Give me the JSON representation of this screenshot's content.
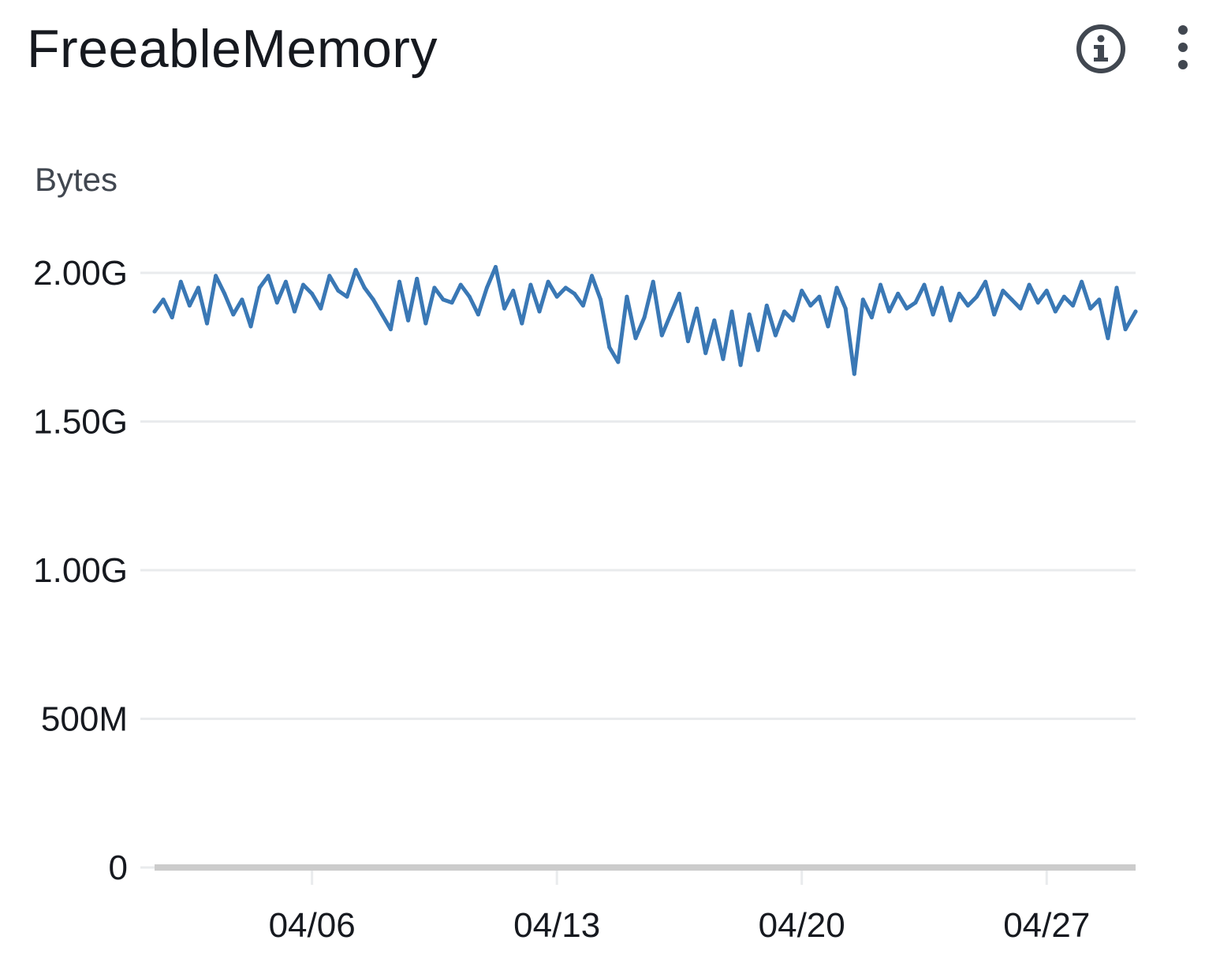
{
  "widget": {
    "title": "FreeableMemory",
    "info_icon": "info-icon",
    "more_icon": "vertical-ellipsis-icon"
  },
  "colors": {
    "series": "#3a78b5",
    "grid": "#e9ebed",
    "axis": "#cccccc",
    "text": "#16191f",
    "icon": "#414750"
  },
  "chart_data": {
    "type": "line",
    "title": "FreeableMemory",
    "ylabel": "Bytes",
    "xlabel": "",
    "ylim": [
      0,
      2000000000
    ],
    "yticks": [
      {
        "value": 0,
        "label": "0"
      },
      {
        "value": 500000000,
        "label": "500M"
      },
      {
        "value": 1000000000,
        "label": "1.00G"
      },
      {
        "value": 1500000000,
        "label": "1.50G"
      },
      {
        "value": 2000000000,
        "label": "2.00G"
      }
    ],
    "xlim": [
      "04/01 12:00",
      "04/29 13:00"
    ],
    "xticks": [
      {
        "value": "04/06",
        "label": "04/06"
      },
      {
        "value": "04/13",
        "label": "04/13"
      },
      {
        "value": "04/20",
        "label": "04/20"
      },
      {
        "value": "04/27",
        "label": "04/27"
      }
    ],
    "grid": true,
    "legend": "none",
    "series": [
      {
        "points": [
          [
            "04/01 12:00",
            1.87
          ],
          [
            "04/01 18:00",
            1.91
          ],
          [
            "04/02 00:00",
            1.85
          ],
          [
            "04/02 06:00",
            1.97
          ],
          [
            "04/02 12:00",
            1.89
          ],
          [
            "04/02 18:00",
            1.95
          ],
          [
            "04/03 00:00",
            1.83
          ],
          [
            "04/03 06:00",
            1.99
          ],
          [
            "04/03 12:00",
            1.93
          ],
          [
            "04/03 18:00",
            1.86
          ],
          [
            "04/04 00:00",
            1.91
          ],
          [
            "04/04 06:00",
            1.82
          ],
          [
            "04/04 12:00",
            1.95
          ],
          [
            "04/04 18:00",
            1.99
          ],
          [
            "04/05 00:00",
            1.9
          ],
          [
            "04/05 06:00",
            1.97
          ],
          [
            "04/05 12:00",
            1.87
          ],
          [
            "04/05 18:00",
            1.96
          ],
          [
            "04/06 00:00",
            1.93
          ],
          [
            "04/06 06:00",
            1.88
          ],
          [
            "04/06 12:00",
            1.99
          ],
          [
            "04/06 18:00",
            1.94
          ],
          [
            "04/07 00:00",
            1.92
          ],
          [
            "04/07 06:00",
            2.01
          ],
          [
            "04/07 12:00",
            1.95
          ],
          [
            "04/07 18:00",
            1.91
          ],
          [
            "04/08 00:00",
            1.86
          ],
          [
            "04/08 06:00",
            1.81
          ],
          [
            "04/08 12:00",
            1.97
          ],
          [
            "04/08 18:00",
            1.84
          ],
          [
            "04/09 00:00",
            1.98
          ],
          [
            "04/09 06:00",
            1.83
          ],
          [
            "04/09 12:00",
            1.95
          ],
          [
            "04/09 18:00",
            1.91
          ],
          [
            "04/10 00:00",
            1.9
          ],
          [
            "04/10 06:00",
            1.96
          ],
          [
            "04/10 12:00",
            1.92
          ],
          [
            "04/10 18:00",
            1.86
          ],
          [
            "04/11 00:00",
            1.95
          ],
          [
            "04/11 06:00",
            2.02
          ],
          [
            "04/11 12:00",
            1.88
          ],
          [
            "04/11 18:00",
            1.94
          ],
          [
            "04/12 00:00",
            1.83
          ],
          [
            "04/12 06:00",
            1.96
          ],
          [
            "04/12 12:00",
            1.87
          ],
          [
            "04/12 18:00",
            1.97
          ],
          [
            "04/13 00:00",
            1.92
          ],
          [
            "04/13 06:00",
            1.95
          ],
          [
            "04/13 12:00",
            1.93
          ],
          [
            "04/13 18:00",
            1.89
          ],
          [
            "04/14 00:00",
            1.99
          ],
          [
            "04/14 06:00",
            1.91
          ],
          [
            "04/14 12:00",
            1.75
          ],
          [
            "04/14 18:00",
            1.7
          ],
          [
            "04/15 00:00",
            1.92
          ],
          [
            "04/15 06:00",
            1.78
          ],
          [
            "04/15 12:00",
            1.85
          ],
          [
            "04/15 18:00",
            1.97
          ],
          [
            "04/16 00:00",
            1.79
          ],
          [
            "04/16 06:00",
            1.86
          ],
          [
            "04/16 12:00",
            1.93
          ],
          [
            "04/16 18:00",
            1.77
          ],
          [
            "04/17 00:00",
            1.88
          ],
          [
            "04/17 06:00",
            1.73
          ],
          [
            "04/17 12:00",
            1.84
          ],
          [
            "04/17 18:00",
            1.71
          ],
          [
            "04/18 00:00",
            1.87
          ],
          [
            "04/18 06:00",
            1.69
          ],
          [
            "04/18 12:00",
            1.86
          ],
          [
            "04/18 18:00",
            1.74
          ],
          [
            "04/19 00:00",
            1.89
          ],
          [
            "04/19 06:00",
            1.79
          ],
          [
            "04/19 12:00",
            1.87
          ],
          [
            "04/19 18:00",
            1.84
          ],
          [
            "04/20 00:00",
            1.94
          ],
          [
            "04/20 06:00",
            1.89
          ],
          [
            "04/20 12:00",
            1.92
          ],
          [
            "04/20 18:00",
            1.82
          ],
          [
            "04/21 00:00",
            1.95
          ],
          [
            "04/21 06:00",
            1.88
          ],
          [
            "04/21 12:00",
            1.66
          ],
          [
            "04/21 18:00",
            1.91
          ],
          [
            "04/22 00:00",
            1.85
          ],
          [
            "04/22 06:00",
            1.96
          ],
          [
            "04/22 12:00",
            1.87
          ],
          [
            "04/22 18:00",
            1.93
          ],
          [
            "04/23 00:00",
            1.88
          ],
          [
            "04/23 06:00",
            1.9
          ],
          [
            "04/23 12:00",
            1.96
          ],
          [
            "04/23 18:00",
            1.86
          ],
          [
            "04/24 00:00",
            1.95
          ],
          [
            "04/24 06:00",
            1.84
          ],
          [
            "04/24 12:00",
            1.93
          ],
          [
            "04/24 18:00",
            1.89
          ],
          [
            "04/25 00:00",
            1.92
          ],
          [
            "04/25 06:00",
            1.97
          ],
          [
            "04/25 12:00",
            1.86
          ],
          [
            "04/25 18:00",
            1.94
          ],
          [
            "04/26 00:00",
            1.91
          ],
          [
            "04/26 06:00",
            1.88
          ],
          [
            "04/26 12:00",
            1.96
          ],
          [
            "04/26 18:00",
            1.9
          ],
          [
            "04/27 00:00",
            1.94
          ],
          [
            "04/27 06:00",
            1.87
          ],
          [
            "04/27 12:00",
            1.92
          ],
          [
            "04/27 18:00",
            1.89
          ],
          [
            "04/28 00:00",
            1.97
          ],
          [
            "04/28 06:00",
            1.88
          ],
          [
            "04/28 12:00",
            1.91
          ],
          [
            "04/28 18:00",
            1.78
          ],
          [
            "04/29 00:00",
            1.95
          ],
          [
            "04/29 06:00",
            1.81
          ],
          [
            "04/29 13:00",
            1.87
          ]
        ]
      }
    ]
  }
}
